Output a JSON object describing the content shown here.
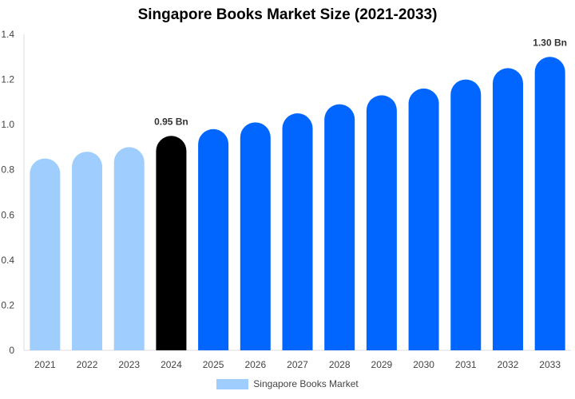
{
  "chart_data": {
    "type": "bar",
    "title": "Singapore Books Market Size (2021-2033)",
    "xlabel": "",
    "ylabel": "",
    "categories": [
      "2021",
      "2022",
      "2023",
      "2024",
      "2025",
      "2026",
      "2027",
      "2028",
      "2029",
      "2030",
      "2031",
      "2032",
      "2033"
    ],
    "series": [
      {
        "name": "Singapore Books Market",
        "values": [
          0.85,
          0.88,
          0.9,
          0.95,
          0.98,
          1.01,
          1.05,
          1.09,
          1.13,
          1.16,
          1.2,
          1.25,
          1.3
        ]
      }
    ],
    "bar_colors": [
      "#9fcdfd",
      "#9fcdfd",
      "#9fcdfd",
      "#000000",
      "#0066ff",
      "#0066ff",
      "#0066ff",
      "#0066ff",
      "#0066ff",
      "#0066ff",
      "#0066ff",
      "#0066ff",
      "#0066ff"
    ],
    "data_labels": [
      {
        "category": "2024",
        "text": "0.95 Bn"
      },
      {
        "category": "2033",
        "text": "1.30 Bn"
      }
    ],
    "yticks": [
      "0",
      "0.2",
      "0.4",
      "0.6",
      "0.8",
      "1.0",
      "1.2",
      "1.4"
    ],
    "ylim": [
      0,
      1.4
    ],
    "grid": false,
    "legend": {
      "position": "bottom",
      "label": "Singapore Books Market",
      "color": "#9fcdfd"
    }
  }
}
